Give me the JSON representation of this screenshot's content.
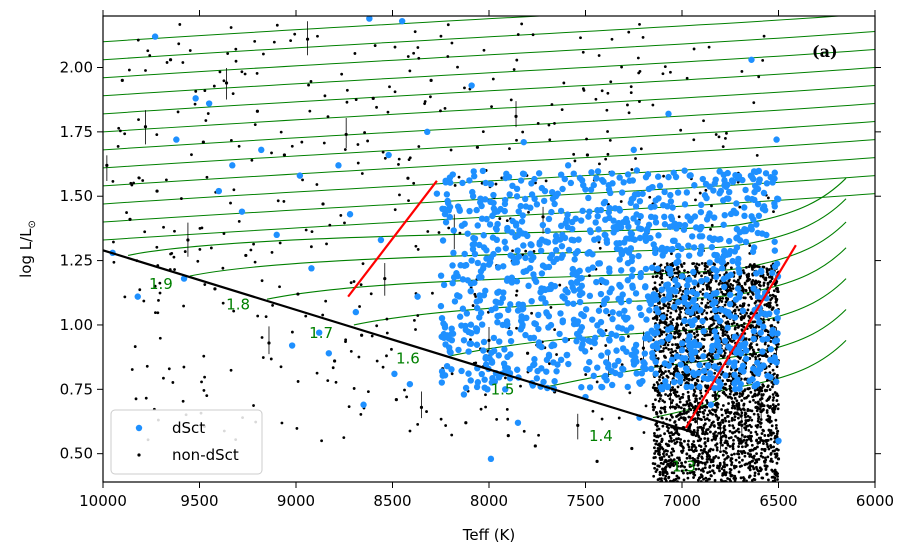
{
  "chart_data": {
    "type": "scatter",
    "panel_label": "(a)",
    "xlabel": "Teff (K)",
    "ylabel_main": "log L/L",
    "ylabel_sub": "⊙",
    "xlim": [
      10000,
      6000
    ],
    "ylim": [
      0.39,
      2.2
    ],
    "x_reversed": true,
    "grid": false,
    "legend_position": "lower-left",
    "x_ticks": [
      10000,
      9500,
      9000,
      8500,
      8000,
      7500,
      7000,
      6500,
      6000
    ],
    "x_tick_labels": [
      "10000",
      "9500",
      "9000",
      "8500",
      "8000",
      "7500",
      "7000",
      "6500",
      "6000"
    ],
    "y_ticks": [
      0.5,
      0.75,
      1.0,
      1.25,
      1.5,
      1.75,
      2.0
    ],
    "y_tick_labels": [
      "0.50",
      "0.75",
      "1.00",
      "1.25",
      "1.50",
      "1.75",
      "2.00"
    ],
    "colors": {
      "dsct": "#1e90ff",
      "non_dsct": "#000000",
      "tracks": "#008000",
      "zams": "#000000",
      "instability_strip": "#ff0000",
      "legend_border": "#cccccc"
    },
    "legend": [
      {
        "label": "dSct",
        "marker": "circle",
        "color": "#1e90ff"
      },
      {
        "label": "non-dSct",
        "marker": "dot",
        "color": "#000000"
      }
    ],
    "zams_line": {
      "x": [
        10000,
        6930
      ],
      "y": [
        1.29,
        0.58
      ]
    },
    "instability_strip_edges": [
      {
        "name": "blue edge",
        "x": [
          8730,
          8270
        ],
        "y": [
          1.11,
          1.56
        ]
      },
      {
        "name": "red edge",
        "x": [
          6980,
          6410
        ],
        "y": [
          0.6,
          1.31
        ]
      }
    ],
    "mass_tracks": [
      {
        "mass_label": "1.9",
        "label_x": 9700,
        "label_y": 1.14,
        "zams_teff": 9870,
        "zams_logl": 1.27
      },
      {
        "mass_label": "1.8",
        "label_x": 9300,
        "label_y": 1.06,
        "zams_teff": 9550,
        "zams_logl": 1.19
      },
      {
        "mass_label": "1.7",
        "label_x": 8870,
        "label_y": 0.95,
        "zams_teff": 9150,
        "zams_logl": 1.1
      },
      {
        "mass_label": "1.6",
        "label_x": 8420,
        "label_y": 0.85,
        "zams_teff": 8700,
        "zams_logl": 1.0
      },
      {
        "mass_label": "1.5",
        "label_x": 7930,
        "label_y": 0.73,
        "zams_teff": 8200,
        "zams_logl": 0.88
      },
      {
        "mass_label": "1.4",
        "label_x": 7420,
        "label_y": 0.55,
        "zams_teff": 7700,
        "zams_logl": 0.76
      },
      {
        "mass_label": "1.3",
        "label_x": 6990,
        "label_y": 0.43,
        "zams_teff": 7150,
        "zams_logl": 0.64
      }
    ],
    "upper_tracks_count": 12,
    "series": [
      {
        "name": "dSct",
        "marker": "filled-circle",
        "points": [
          [
            9950,
            1.28
          ],
          [
            9820,
            1.11
          ],
          [
            9730,
            2.12
          ],
          [
            9620,
            1.72
          ],
          [
            9580,
            1.18
          ],
          [
            9520,
            1.88
          ],
          [
            9450,
            1.86
          ],
          [
            9400,
            1.52
          ],
          [
            9330,
            1.62
          ],
          [
            9280,
            1.44
          ],
          [
            9180,
            1.68
          ],
          [
            9100,
            1.35
          ],
          [
            9020,
            0.92
          ],
          [
            8980,
            1.58
          ],
          [
            8920,
            1.22
          ],
          [
            8880,
            0.97
          ],
          [
            8830,
            0.89
          ],
          [
            8780,
            1.62
          ],
          [
            8720,
            1.43
          ],
          [
            8690,
            1.05
          ],
          [
            8650,
            0.69
          ],
          [
            8620,
            2.19
          ],
          [
            8560,
            1.33
          ],
          [
            8520,
            1.66
          ],
          [
            8490,
            0.81
          ],
          [
            8450,
            2.18
          ],
          [
            8410,
            0.77
          ],
          [
            8370,
            1.11
          ],
          [
            8320,
            1.75
          ],
          [
            8270,
            1.51
          ],
          [
            8210,
            0.95
          ],
          [
            8160,
            1.46
          ],
          [
            8130,
            0.73
          ],
          [
            8090,
            1.93
          ],
          [
            8030,
            1.22
          ],
          [
            7990,
            0.48
          ],
          [
            7970,
            0.78
          ],
          [
            7940,
            1.45
          ],
          [
            7890,
            1.08
          ],
          [
            7850,
            0.62
          ],
          [
            7820,
            1.71
          ],
          [
            7780,
            1.31
          ],
          [
            7740,
            0.92
          ],
          [
            7710,
            1.52
          ],
          [
            7680,
            1.14
          ],
          [
            7650,
            0.82
          ],
          [
            7620,
            1.35
          ],
          [
            7590,
            1.62
          ],
          [
            7560,
            1.02
          ],
          [
            7530,
            1.21
          ],
          [
            7500,
            0.72
          ],
          [
            7480,
            1.44
          ],
          [
            7450,
            0.95
          ],
          [
            7420,
            1.12
          ],
          [
            7390,
            1.33
          ],
          [
            7360,
            1.55
          ],
          [
            7330,
            0.86
          ],
          [
            7300,
            1.03
          ],
          [
            7280,
            1.24
          ],
          [
            7250,
            1.68
          ],
          [
            7220,
            0.64
          ],
          [
            7190,
            1.15
          ],
          [
            7160,
            1.42
          ],
          [
            7130,
            0.97
          ],
          [
            7100,
            1.27
          ],
          [
            7070,
            1.82
          ],
          [
            7040,
            1.07
          ],
          [
            7010,
            0.78
          ],
          [
            6990,
            1.37
          ],
          [
            6960,
            1.58
          ],
          [
            6930,
            0.92
          ],
          [
            6900,
            1.17
          ],
          [
            6870,
            1.41
          ],
          [
            6850,
            0.69
          ],
          [
            6820,
            1.03
          ],
          [
            6790,
            1.26
          ],
          [
            6760,
            1.49
          ],
          [
            6730,
            0.84
          ],
          [
            6700,
            1.12
          ],
          [
            6670,
            1.37
          ],
          [
            6640,
            2.03
          ],
          [
            6610,
            0.77
          ],
          [
            6590,
            1.21
          ],
          [
            6560,
            1.55
          ],
          [
            6530,
            0.98
          ],
          [
            6510,
            1.72
          ],
          [
            6500,
            0.55
          ]
        ]
      },
      {
        "name": "non-dSct",
        "marker": "small-dot",
        "points": [
          [
            9980,
            1.62
          ],
          [
            9900,
            1.95
          ],
          [
            9860,
            1.41
          ],
          [
            9780,
            1.77
          ],
          [
            9720,
            1.52
          ],
          [
            9650,
            2.03
          ],
          [
            9560,
            1.33
          ],
          [
            9480,
            1.71
          ],
          [
            9420,
            1.14
          ],
          [
            9360,
            1.94
          ],
          [
            9260,
            1.27
          ],
          [
            9200,
            1.83
          ],
          [
            9140,
            0.93
          ],
          [
            9060,
            1.66
          ],
          [
            8990,
            1.12
          ],
          [
            8940,
            2.11
          ],
          [
            8860,
            1.47
          ],
          [
            8800,
            0.86
          ],
          [
            8740,
            1.74
          ],
          [
            8660,
            0.96
          ],
          [
            8600,
            1.88
          ],
          [
            8540,
            1.18
          ],
          [
            8480,
            0.71
          ],
          [
            8420,
            1.57
          ],
          [
            8350,
            0.68
          ],
          [
            8300,
            1.95
          ],
          [
            8240,
            0.83
          ],
          [
            8180,
            1.36
          ],
          [
            8120,
            0.62
          ],
          [
            8060,
            1.69
          ],
          [
            8000,
            0.94
          ],
          [
            7960,
            1.23
          ],
          [
            7900,
            0.57
          ],
          [
            7860,
            1.81
          ],
          [
            7800,
            0.89
          ],
          [
            7760,
            0.53
          ],
          [
            7720,
            1.42
          ],
          [
            7660,
            0.74
          ],
          [
            7600,
            1.13
          ],
          [
            7540,
            0.61
          ],
          [
            7490,
            1.66
          ],
          [
            7440,
            0.47
          ],
          [
            7380,
            0.84
          ],
          [
            7320,
            1.28
          ],
          [
            7260,
            0.52
          ],
          [
            7200,
            0.91
          ],
          [
            7150,
            1.47
          ],
          [
            7100,
            0.44
          ],
          [
            7060,
            0.73
          ],
          [
            7000,
            1.09
          ],
          [
            6960,
            0.49
          ],
          [
            6920,
            0.66
          ],
          [
            6880,
            0.81
          ],
          [
            6840,
            0.47
          ],
          [
            6800,
            0.58
          ],
          [
            6760,
            0.72
          ],
          [
            6720,
            0.45
          ],
          [
            6690,
            0.61
          ],
          [
            6650,
            0.87
          ],
          [
            6620,
            0.52
          ],
          [
            6590,
            0.69
          ],
          [
            6560,
            0.42
          ],
          [
            6530,
            0.58
          ],
          [
            6510,
            0.94
          ],
          [
            6500,
            0.48
          ]
        ]
      }
    ]
  }
}
